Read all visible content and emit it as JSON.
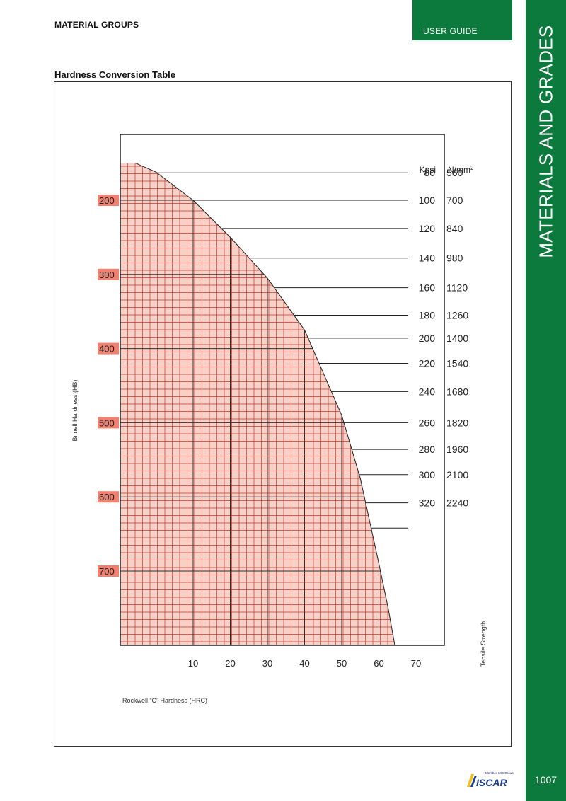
{
  "header": {
    "section": "MATERIAL GROUPS",
    "tab_label": "USER GUIDE",
    "side_title": "MATERIALS AND GRADES",
    "page_number": "1007"
  },
  "table_title": "Hardness Conversion Table",
  "colors": {
    "brand_green": "#0c7a3c",
    "chart_fill": "#f7d0c8",
    "grid_line": "#c0392b",
    "label_bg": "#f08070"
  },
  "logo": {
    "text": "ISCAR",
    "tagline": "Member IMC Group"
  },
  "chart_data": {
    "type": "area",
    "xlabel": "Rockwell “C” Hardness (HRC)",
    "ylabel": "Brinell Hardness (HB)",
    "right_label": "Tensile Strength",
    "x_ticks": [
      "10",
      "20",
      "30",
      "40",
      "50",
      "60",
      "70"
    ],
    "y_ticks": [
      "200",
      "300",
      "400",
      "500",
      "600",
      "700"
    ],
    "xlim": [
      -8.5,
      70
    ],
    "ylim": [
      100,
      790
    ],
    "grid": true,
    "units": {
      "kpsi": "Kpsi",
      "nmm": "N/mm",
      "nmm_sup": "2"
    },
    "curve": [
      {
        "hrc": -5.5,
        "hb": 150
      },
      {
        "hrc": 0,
        "hb": 162
      },
      {
        "hrc": 10,
        "hb": 200
      },
      {
        "hrc": 20,
        "hb": 250
      },
      {
        "hrc": 30,
        "hb": 305
      },
      {
        "hrc": 40,
        "hb": 375
      },
      {
        "hrc": 50,
        "hb": 490
      },
      {
        "hrc": 55,
        "hb": 575
      },
      {
        "hrc": 60,
        "hb": 690
      },
      {
        "hrc": 62.5,
        "hb": 750
      },
      {
        "hrc": 67.5,
        "hb": 890
      }
    ],
    "tensile": [
      {
        "kpsi": "80",
        "nmm": "560",
        "hb": 163
      },
      {
        "kpsi": "100",
        "nmm": "700",
        "hb": 200
      },
      {
        "kpsi": "120",
        "nmm": "840",
        "hb": 238
      },
      {
        "kpsi": "140",
        "nmm": "980",
        "hb": 278
      },
      {
        "kpsi": "160",
        "nmm": "1120",
        "hb": 318
      },
      {
        "kpsi": "180",
        "nmm": "1260",
        "hb": 355
      },
      {
        "kpsi": "200",
        "nmm": "1400",
        "hb": 386
      },
      {
        "kpsi": "220",
        "nmm": "1540",
        "hb": 420
      },
      {
        "kpsi": "240",
        "nmm": "1680",
        "hb": 458
      },
      {
        "kpsi": "260",
        "nmm": "1820",
        "hb": 500
      },
      {
        "kpsi": "280",
        "nmm": "1960",
        "hb": 536
      },
      {
        "kpsi": "300",
        "nmm": "2100",
        "hb": 570
      },
      {
        "kpsi": "320",
        "nmm": "2240",
        "hb": 608
      },
      {
        "kpsi": "",
        "nmm": "",
        "hb": 642
      }
    ]
  }
}
